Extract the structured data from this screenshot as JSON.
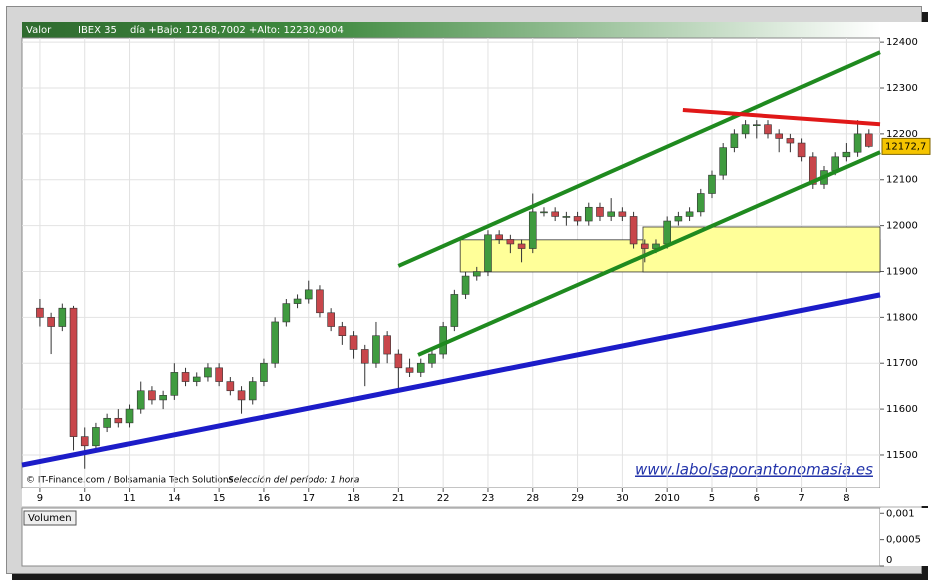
{
  "chart_data": [
    {
      "type": "candlestick",
      "header_label": "Valor",
      "title": "IBEX 35",
      "subtitle": "día +Bajo: 12168,7002 +Alto: 12230,9004",
      "source": "© IT-Finance.com / Bolsamania Tech Solutions",
      "note": "Selección del período: 1 hora",
      "watermark": "www.labolsaporantonomasia.es",
      "last_price": {
        "value": 12172.7,
        "label": "12172,7"
      },
      "up_color": "#3f9b3f",
      "down_color": "#c8464b",
      "grid": true,
      "xlim": [
        -0.4,
        18.75
      ],
      "xticks": [
        {
          "value": 0,
          "label": "9"
        },
        {
          "value": 1,
          "label": "10"
        },
        {
          "value": 2,
          "label": "11"
        },
        {
          "value": 3,
          "label": "14"
        },
        {
          "value": 4,
          "label": "15"
        },
        {
          "value": 5,
          "label": "16"
        },
        {
          "value": 6,
          "label": "17"
        },
        {
          "value": 7,
          "label": "18"
        },
        {
          "value": 8,
          "label": "21"
        },
        {
          "value": 9,
          "label": "22"
        },
        {
          "value": 10,
          "label": "23"
        },
        {
          "value": 11,
          "label": "28"
        },
        {
          "value": 12,
          "label": "29"
        },
        {
          "value": 13,
          "label": "30"
        },
        {
          "value": 14,
          "label": "2010"
        },
        {
          "value": 15,
          "label": "5"
        },
        {
          "value": 16,
          "label": "6"
        },
        {
          "value": 17,
          "label": "7"
        },
        {
          "value": 18,
          "label": "8"
        }
      ],
      "ylim": [
        11428,
        12409
      ],
      "yticks": [
        11500,
        11600,
        11700,
        11800,
        11900,
        12000,
        12100,
        12200,
        12300,
        12400
      ],
      "x": [
        0,
        0.25,
        0.5,
        0.75,
        1,
        1.25,
        1.5,
        1.75,
        2,
        2.25,
        2.5,
        2.75,
        3,
        3.25,
        3.5,
        3.75,
        4,
        4.25,
        4.5,
        4.75,
        5,
        5.25,
        5.5,
        5.75,
        6,
        6.25,
        6.5,
        6.75,
        7,
        7.25,
        7.5,
        7.75,
        8,
        8.25,
        8.5,
        8.75,
        9,
        9.25,
        9.5,
        9.75,
        10,
        10.25,
        10.5,
        10.75,
        11,
        11.25,
        11.5,
        11.75,
        12,
        12.25,
        12.5,
        12.75,
        13,
        13.25,
        13.5,
        13.75,
        14,
        14.25,
        14.5,
        14.75,
        15,
        15.25,
        15.5,
        15.75,
        16,
        16.25,
        16.5,
        16.75,
        17,
        17.25,
        17.5,
        17.75,
        18,
        18.25,
        18.5
      ],
      "open": [
        11820,
        11800,
        11780,
        11820,
        11540,
        11520,
        11560,
        11580,
        11570,
        11600,
        11640,
        11620,
        11630,
        11680,
        11660,
        11670,
        11690,
        11660,
        11640,
        11620,
        11660,
        11700,
        11790,
        11830,
        11840,
        11860,
        11810,
        11780,
        11760,
        11730,
        11700,
        11760,
        11720,
        11690,
        11680,
        11700,
        11720,
        11780,
        11850,
        11890,
        11900,
        11980,
        11970,
        11960,
        11950,
        12030,
        12030,
        12020,
        12020,
        12010,
        12040,
        12020,
        12030,
        12020,
        11960,
        11950,
        11960,
        12010,
        12020,
        12030,
        12070,
        12110,
        12170,
        12200,
        12220,
        12220,
        12200,
        12190,
        12180,
        12150,
        12090,
        12120,
        12150,
        12160,
        12200
      ],
      "high": [
        11840,
        11810,
        11830,
        11825,
        11560,
        11570,
        11590,
        11600,
        11610,
        11660,
        11650,
        11640,
        11700,
        11690,
        11680,
        11700,
        11700,
        11670,
        11650,
        11670,
        11710,
        11800,
        11840,
        11850,
        11880,
        11870,
        11820,
        11790,
        11770,
        11740,
        11790,
        11770,
        11730,
        11710,
        11710,
        11730,
        11790,
        11860,
        11900,
        11910,
        11990,
        11990,
        11980,
        11970,
        12070,
        12040,
        12040,
        12030,
        12030,
        12050,
        12050,
        12060,
        12040,
        12030,
        11970,
        11970,
        12020,
        12030,
        12040,
        12080,
        12120,
        12180,
        12210,
        12230,
        12230,
        12230,
        12210,
        12200,
        12190,
        12160,
        12130,
        12160,
        12180,
        12230,
        12210
      ],
      "low": [
        11780,
        11720,
        11770,
        11510,
        11470,
        11510,
        11550,
        11560,
        11560,
        11590,
        11610,
        11600,
        11620,
        11650,
        11650,
        11660,
        11650,
        11630,
        11590,
        11610,
        11650,
        11690,
        11780,
        11820,
        11830,
        11800,
        11770,
        11740,
        11710,
        11650,
        11690,
        11700,
        11640,
        11670,
        11670,
        11690,
        11710,
        11770,
        11840,
        11880,
        11890,
        11960,
        11940,
        11920,
        11940,
        12020,
        12010,
        12000,
        12000,
        12000,
        12010,
        12010,
        12010,
        11950,
        11920,
        11940,
        11950,
        12000,
        12010,
        12020,
        12060,
        12100,
        12160,
        12190,
        12190,
        12190,
        12160,
        12160,
        12140,
        12080,
        12080,
        12110,
        12140,
        12150,
        12170
      ],
      "close": [
        11800,
        11780,
        11820,
        11540,
        11520,
        11560,
        11580,
        11570,
        11600,
        11640,
        11620,
        11630,
        11680,
        11660,
        11670,
        11690,
        11660,
        11640,
        11620,
        11660,
        11700,
        11790,
        11830,
        11840,
        11860,
        11810,
        11780,
        11760,
        11730,
        11700,
        11760,
        11720,
        11690,
        11680,
        11700,
        11720,
        11780,
        11850,
        11890,
        11900,
        11980,
        11970,
        11960,
        11950,
        12030,
        12030,
        12020,
        12020,
        12010,
        12040,
        12020,
        12030,
        12020,
        11960,
        11950,
        11960,
        12010,
        12020,
        12030,
        12070,
        12110,
        12170,
        12200,
        12220,
        12220,
        12200,
        12190,
        12180,
        12150,
        12090,
        12120,
        12150,
        12160,
        12200,
        12172.7
      ],
      "zones": [
        {
          "color": "#ffff99",
          "x": [
            9.38,
            18.75
          ],
          "y": [
            11899,
            11969
          ]
        },
        {
          "color": "#ffff99",
          "x": [
            13.46,
            18.75
          ],
          "y": [
            11899,
            11997
          ]
        }
      ],
      "trend_lines": [
        {
          "color": "#1c1cc8",
          "width": 5,
          "x": [
            -0.4,
            18.75
          ],
          "y": [
            11478,
            11849
          ]
        },
        {
          "color": "#1f8a1f",
          "width": 4,
          "x": [
            8.0,
            18.75
          ],
          "y": [
            11912,
            12378
          ]
        },
        {
          "color": "#1f8a1f",
          "width": 4,
          "x": [
            8.44,
            18.75
          ],
          "y": [
            11718,
            12160
          ]
        },
        {
          "color": "#e01818",
          "width": 4,
          "x": [
            14.35,
            18.75
          ],
          "y": [
            12252,
            12221
          ]
        }
      ]
    },
    {
      "type": "bar",
      "title": "Volumen",
      "ylim": [
        0,
        0.0011
      ],
      "yticks": [
        {
          "value": 0.001,
          "label": "0,001"
        },
        {
          "value": 0.0005,
          "label": "0,0005"
        },
        0
      ]
    }
  ]
}
